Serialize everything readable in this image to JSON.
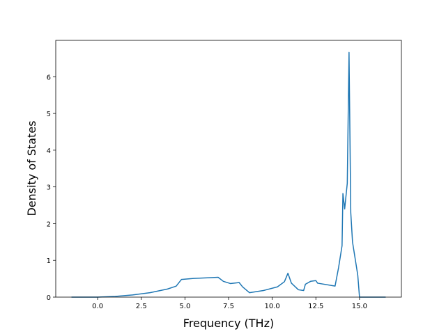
{
  "chart_data": {
    "type": "line",
    "x_label": "Frequency (THz)",
    "y_label": "Density of States",
    "x": [
      -1.5,
      0,
      1,
      2,
      3,
      4,
      4.5,
      4.7,
      4.8,
      5.5,
      6.5,
      6.9,
      7.2,
      7.6,
      8,
      8.1,
      8.3,
      8.7,
      9.5,
      10.3,
      10.7,
      10.9,
      11.1,
      11.5,
      11.8,
      11.9,
      12.2,
      12.5,
      12.6,
      13.6,
      13.8,
      14.0,
      14.05,
      14.15,
      14.3,
      14.4,
      14.5,
      14.6,
      14.8,
      14.9,
      15.0,
      16.5
    ],
    "series": [
      {
        "color": "#1f77b4",
        "values": [
          0,
          0,
          0.02,
          0.06,
          0.12,
          0.22,
          0.3,
          0.42,
          0.48,
          0.51,
          0.53,
          0.54,
          0.43,
          0.37,
          0.39,
          0.4,
          0.28,
          0.12,
          0.18,
          0.28,
          0.42,
          0.65,
          0.38,
          0.2,
          0.18,
          0.35,
          0.43,
          0.45,
          0.38,
          0.3,
          0.8,
          1.4,
          2.82,
          2.4,
          3.1,
          6.66,
          2.3,
          1.5,
          0.9,
          0.6,
          0,
          0
        ]
      }
    ],
    "xlim": [
      -2.4,
      17.4
    ],
    "ylim": [
      0,
      6.99
    ],
    "xticks": [
      {
        "value": 0,
        "label": "0.0"
      },
      {
        "value": 2.5,
        "label": "2.5"
      },
      {
        "value": 5,
        "label": "5.0"
      },
      {
        "value": 7.5,
        "label": "7.5"
      },
      {
        "value": 10,
        "label": "10.0"
      },
      {
        "value": 12.5,
        "label": "12.5"
      },
      {
        "value": 15,
        "label": "15.0"
      }
    ],
    "yticks": [
      0,
      1,
      2,
      3,
      4,
      5,
      6
    ]
  }
}
